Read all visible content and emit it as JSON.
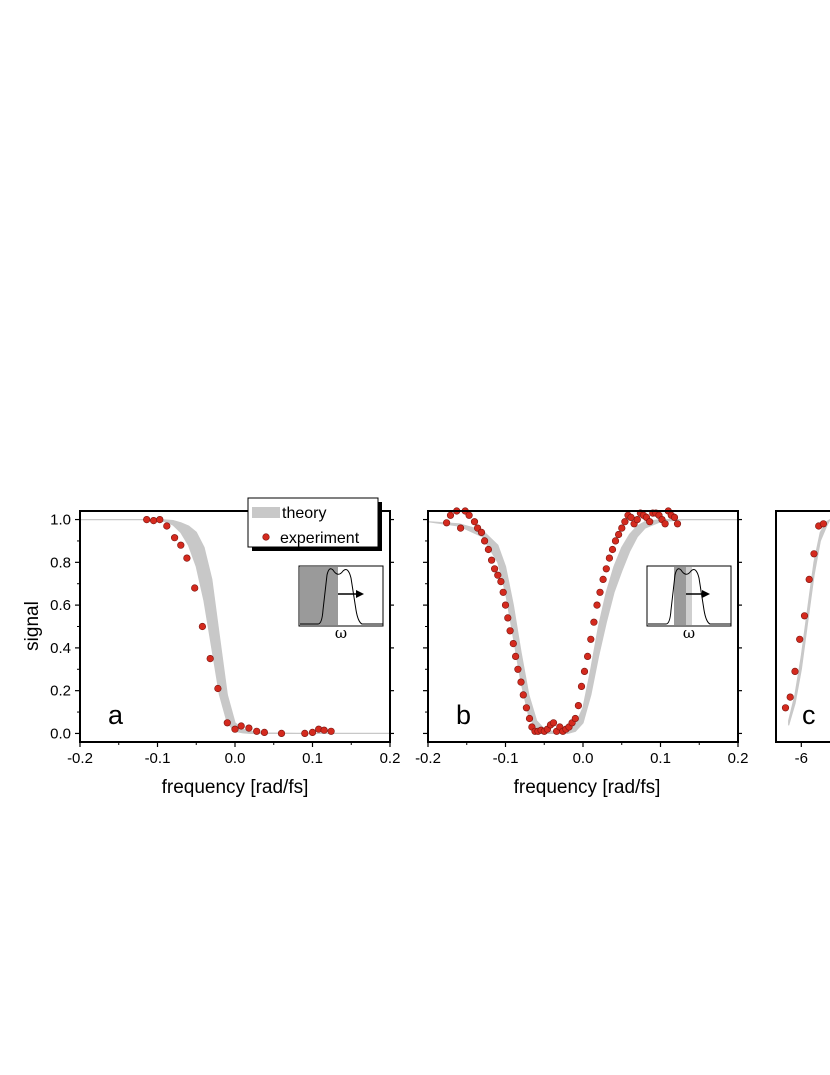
{
  "colors": {
    "theory": "#c8c8c8",
    "experiment": "#d42a1e",
    "experiment_edge": "#7a1510",
    "inset_dark": "#9a9a9a",
    "inset_light": "#cfcfcf"
  },
  "legend": {
    "theory_label": "theory",
    "experiment_label": "experiment"
  },
  "inset": {
    "symbol": "ω"
  },
  "chart_data": [
    {
      "type": "scatter",
      "panel": "a",
      "xlabel": "frequency [rad/fs]",
      "ylabel": "signal",
      "xlim": [
        -0.2,
        0.2
      ],
      "ylim": [
        -0.04,
        1.04
      ],
      "xticks": [
        "-0.2",
        "-0.1",
        "0.0",
        "0.1",
        "0.2"
      ],
      "yticks": [
        "0.0",
        "0.2",
        "0.4",
        "0.6",
        "0.8",
        "1.0"
      ],
      "xtick_values": [
        -0.2,
        -0.1,
        0.0,
        0.1,
        0.2
      ],
      "ytick_values": [
        0.0,
        0.2,
        0.4,
        0.6,
        0.8,
        1.0
      ],
      "legend_position": "top-center",
      "theory_band": {
        "x": [
          -0.2,
          -0.15,
          -0.12,
          -0.1,
          -0.09,
          -0.08,
          -0.07,
          -0.06,
          -0.05,
          -0.04,
          -0.03,
          -0.02,
          -0.01,
          0.0,
          0.01,
          0.02,
          0.04,
          0.08,
          0.12,
          0.2
        ],
        "upper": [
          1.0,
          1.0,
          1.0,
          1.0,
          0.998,
          0.995,
          0.985,
          0.97,
          0.94,
          0.87,
          0.72,
          0.45,
          0.18,
          0.05,
          0.02,
          0.01,
          0.002,
          0.0,
          0.0,
          0.0
        ],
        "lower": [
          1.0,
          1.0,
          1.0,
          0.996,
          0.99,
          0.975,
          0.94,
          0.88,
          0.78,
          0.62,
          0.4,
          0.18,
          0.05,
          0.01,
          0.003,
          0.0,
          0.0,
          0.0,
          0.0,
          0.0
        ]
      },
      "experiment": {
        "x": [
          -0.114,
          -0.105,
          -0.097,
          -0.088,
          -0.078,
          -0.07,
          -0.062,
          -0.052,
          -0.042,
          -0.032,
          -0.022,
          -0.01,
          0.0,
          0.008,
          0.018,
          0.028,
          0.038,
          0.06,
          0.09,
          0.1,
          0.108,
          0.115,
          0.124
        ],
        "y": [
          1.0,
          0.995,
          1.0,
          0.97,
          0.915,
          0.88,
          0.82,
          0.68,
          0.5,
          0.35,
          0.21,
          0.05,
          0.02,
          0.035,
          0.025,
          0.01,
          0.005,
          0.0,
          0.0,
          0.005,
          0.02,
          0.015,
          0.01
        ]
      }
    },
    {
      "type": "scatter",
      "panel": "b",
      "xlabel": "frequency [rad/fs]",
      "ylabel": "",
      "xlim": [
        -0.2,
        0.2
      ],
      "ylim": [
        -0.04,
        1.04
      ],
      "xticks": [
        "-0.2",
        "-0.1",
        "0.0",
        "0.1",
        "0.2"
      ],
      "yticks": [],
      "xtick_values": [
        -0.2,
        -0.1,
        0.0,
        0.1,
        0.2
      ],
      "theory_band": {
        "x": [
          -0.2,
          -0.16,
          -0.13,
          -0.11,
          -0.1,
          -0.09,
          -0.08,
          -0.07,
          -0.06,
          -0.05,
          -0.04,
          -0.03,
          -0.02,
          -0.01,
          0.0,
          0.01,
          0.02,
          0.03,
          0.04,
          0.05,
          0.06,
          0.07,
          0.08,
          0.1,
          0.13,
          0.2
        ],
        "upper": [
          0.99,
          0.98,
          0.95,
          0.88,
          0.78,
          0.6,
          0.38,
          0.18,
          0.06,
          0.02,
          0.01,
          0.01,
          0.015,
          0.04,
          0.12,
          0.3,
          0.5,
          0.66,
          0.78,
          0.87,
          0.93,
          0.97,
          0.99,
          1.0,
          1.0,
          1.0
        ],
        "lower": [
          0.99,
          0.97,
          0.92,
          0.8,
          0.66,
          0.45,
          0.24,
          0.08,
          0.02,
          0.0,
          0.0,
          0.0,
          0.0,
          0.01,
          0.05,
          0.18,
          0.36,
          0.52,
          0.66,
          0.76,
          0.85,
          0.92,
          0.96,
          0.99,
          1.0,
          1.0
        ]
      },
      "experiment": {
        "x": [
          -0.176,
          -0.171,
          -0.163,
          -0.158,
          -0.152,
          -0.147,
          -0.14,
          -0.136,
          -0.131,
          -0.127,
          -0.122,
          -0.118,
          -0.114,
          -0.11,
          -0.106,
          -0.103,
          -0.1,
          -0.097,
          -0.094,
          -0.09,
          -0.087,
          -0.084,
          -0.08,
          -0.077,
          -0.073,
          -0.069,
          -0.066,
          -0.062,
          -0.058,
          -0.054,
          -0.05,
          -0.046,
          -0.042,
          -0.038,
          -0.034,
          -0.03,
          -0.026,
          -0.022,
          -0.018,
          -0.014,
          -0.01,
          -0.006,
          -0.002,
          0.002,
          0.006,
          0.01,
          0.014,
          0.018,
          0.022,
          0.026,
          0.03,
          0.034,
          0.038,
          0.042,
          0.046,
          0.05,
          0.054,
          0.058,
          0.062,
          0.066,
          0.07,
          0.074,
          0.078,
          0.082,
          0.086,
          0.09,
          0.094,
          0.098,
          0.102,
          0.106,
          0.11,
          0.114,
          0.118,
          0.122
        ],
        "y": [
          0.985,
          1.02,
          1.04,
          0.96,
          1.04,
          1.02,
          0.99,
          0.96,
          0.94,
          0.9,
          0.86,
          0.81,
          0.77,
          0.74,
          0.71,
          0.66,
          0.6,
          0.54,
          0.48,
          0.42,
          0.36,
          0.3,
          0.24,
          0.18,
          0.12,
          0.07,
          0.03,
          0.01,
          0.01,
          0.015,
          0.01,
          0.02,
          0.04,
          0.05,
          0.01,
          0.03,
          0.01,
          0.02,
          0.03,
          0.05,
          0.07,
          0.13,
          0.22,
          0.29,
          0.36,
          0.44,
          0.52,
          0.6,
          0.66,
          0.72,
          0.77,
          0.82,
          0.86,
          0.9,
          0.93,
          0.96,
          0.99,
          1.02,
          1.01,
          0.98,
          1.0,
          1.03,
          1.02,
          1.01,
          0.99,
          1.03,
          1.03,
          1.02,
          1.0,
          0.98,
          1.04,
          1.02,
          1.01,
          0.98
        ]
      }
    },
    {
      "type": "scatter",
      "panel": "c",
      "xlabel": "",
      "ylabel": "",
      "xlim": [
        -6.8,
        3.0
      ],
      "ylim": [
        -0.04,
        1.04
      ],
      "xticks": [
        "-6"
      ],
      "yticks": [],
      "xtick_values": [
        -6
      ],
      "theory_band": {
        "x": [
          -6.4,
          -6.2,
          -6.0,
          -5.8,
          -5.6,
          -5.4,
          -5.2,
          -5.0,
          -4.8
        ],
        "upper": [
          0.06,
          0.18,
          0.36,
          0.58,
          0.8,
          0.94,
          0.99,
          1.0,
          1.0
        ],
        "lower": [
          0.04,
          0.14,
          0.3,
          0.52,
          0.74,
          0.9,
          0.97,
          1.0,
          1.0
        ]
      },
      "experiment": {
        "x": [
          -6.5,
          -6.35,
          -6.2,
          -6.05,
          -5.9,
          -5.75,
          -5.6,
          -5.45,
          -5.3,
          -5.15
        ],
        "y": [
          0.12,
          0.17,
          0.29,
          0.44,
          0.55,
          0.72,
          0.84,
          0.97,
          0.98,
          0.995
        ]
      }
    }
  ]
}
